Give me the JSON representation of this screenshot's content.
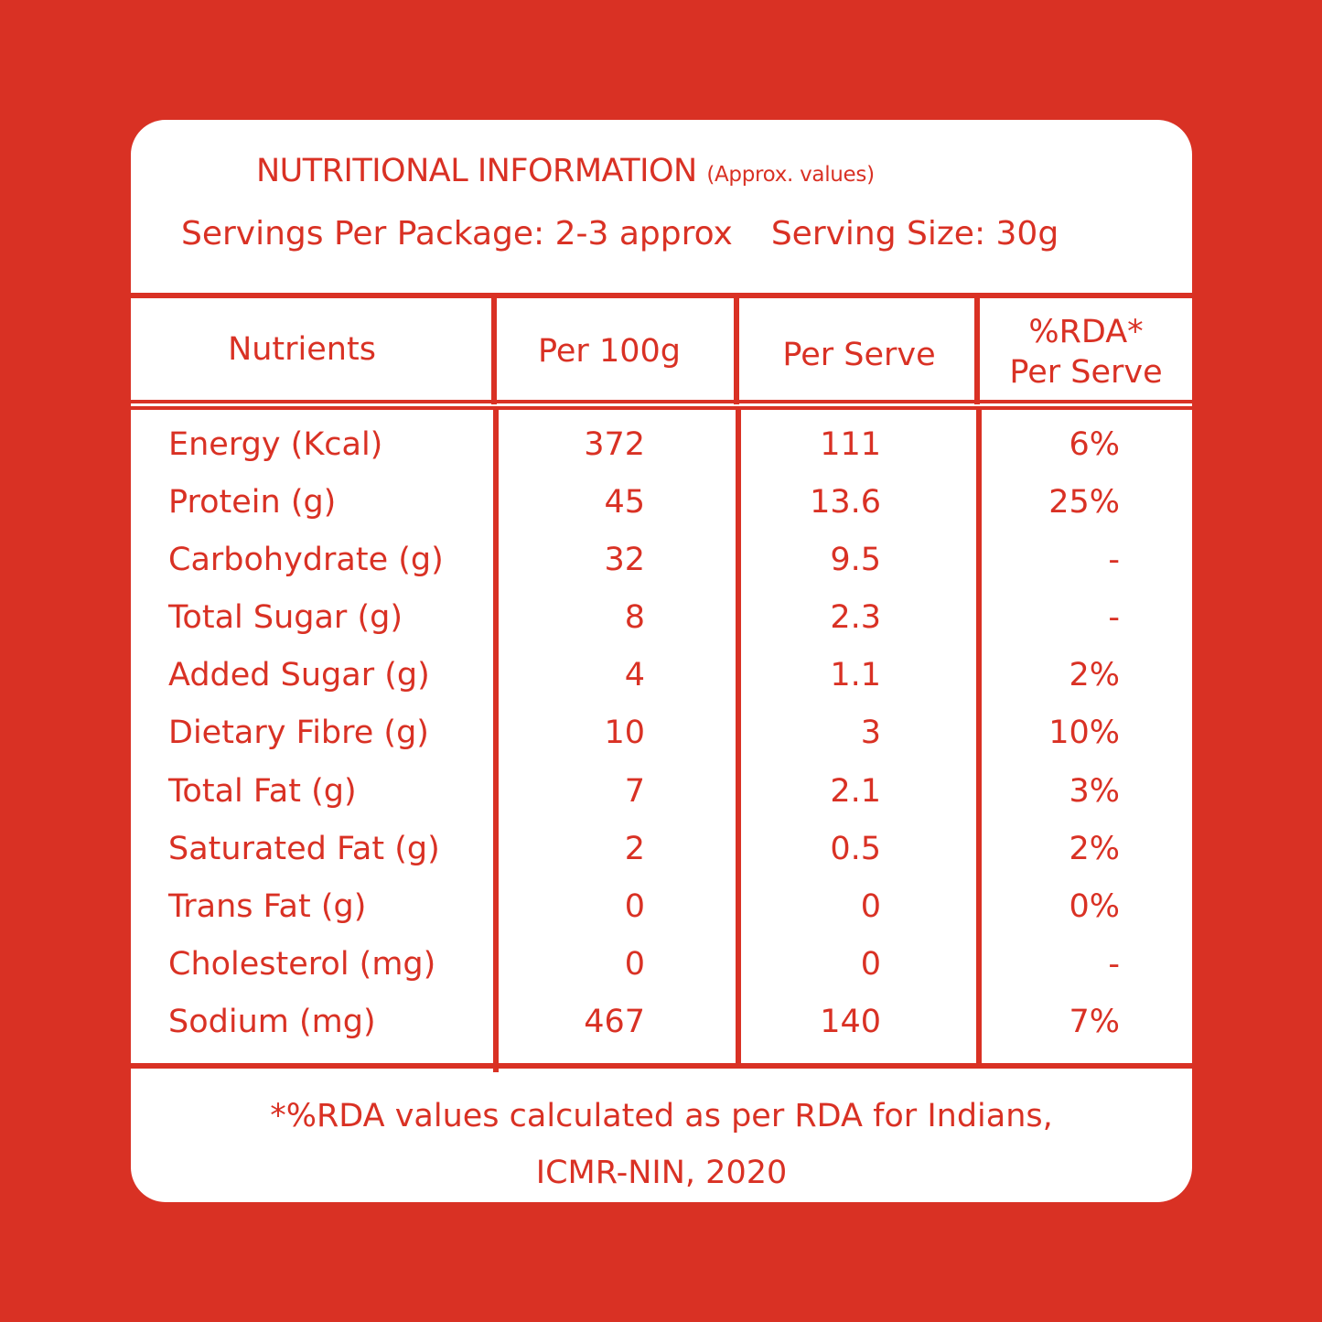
{
  "panel": {
    "title": "NUTRITIONAL INFORMATION",
    "title_note": "(Approx. values)",
    "servings_per_package": "Servings Per Package: 2-3 approx",
    "serving_size": "Serving Size: 30g"
  },
  "table": {
    "headers": {
      "nutrients": "Nutrients",
      "per_100g": "Per 100g",
      "per_serve": "Per Serve",
      "rda_line1": "%RDA*",
      "rda_line2": "Per Serve"
    },
    "rows": [
      {
        "name": "Energy (Kcal)",
        "per_100g": "372",
        "per_serve": "111",
        "rda": "6%"
      },
      {
        "name": "Protein (g)",
        "per_100g": "45",
        "per_serve": "13.6",
        "rda": "25%"
      },
      {
        "name": "Carbohydrate (g)",
        "per_100g": "32",
        "per_serve": "9.5",
        "rda": "-"
      },
      {
        "name": "Total Sugar (g)",
        "per_100g": "8",
        "per_serve": "2.3",
        "rda": "-"
      },
      {
        "name": "Added Sugar (g)",
        "per_100g": "4",
        "per_serve": "1.1",
        "rda": "2%"
      },
      {
        "name": "Dietary Fibre (g)",
        "per_100g": "10",
        "per_serve": "3",
        "rda": "10%"
      },
      {
        "name": "Total Fat (g)",
        "per_100g": "7",
        "per_serve": "2.1",
        "rda": "3%"
      },
      {
        "name": "Saturated Fat (g)",
        "per_100g": "2",
        "per_serve": "0.5",
        "rda": "2%"
      },
      {
        "name": "Trans Fat (g)",
        "per_100g": "0",
        "per_serve": "0",
        "rda": "0%"
      },
      {
        "name": "Cholesterol (mg)",
        "per_100g": "0",
        "per_serve": "0",
        "rda": "-"
      },
      {
        "name": "Sodium (mg)",
        "per_100g": "467",
        "per_serve": "140",
        "rda": "7%"
      }
    ]
  },
  "footnote": {
    "line1": "*%RDA values calculated as per RDA for Indians,",
    "line2": "ICMR-NIN, 2020"
  },
  "colors": {
    "background": "#d93124",
    "panel": "#ffffff",
    "text": "#d93124"
  }
}
